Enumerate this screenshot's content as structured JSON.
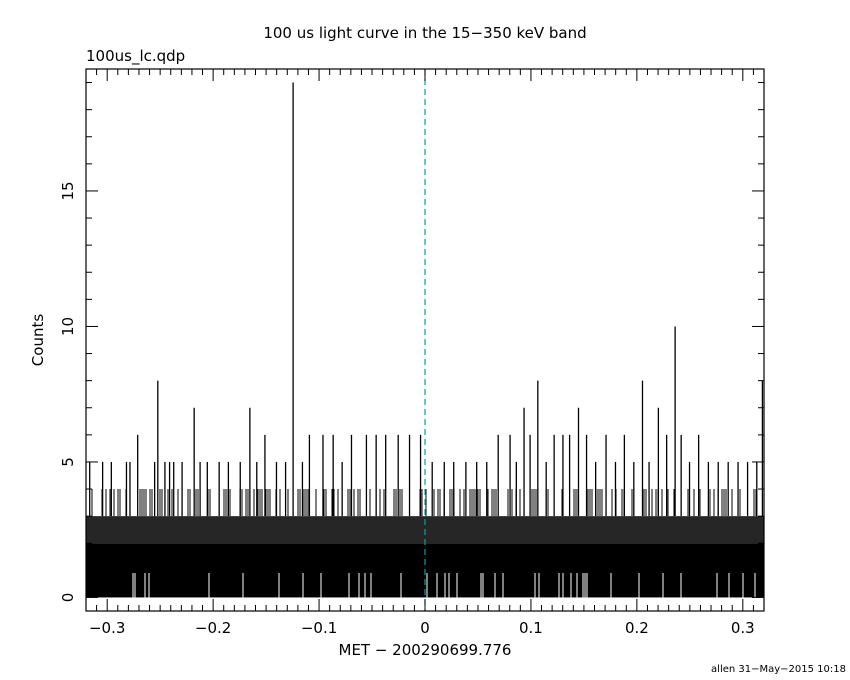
{
  "chart_data": {
    "type": "line",
    "title": "100 us light curve in the 15−350 keV band",
    "file_label": "100us_lc.qdp",
    "xlabel": "MET − 200290699.776",
    "ylabel": "Counts",
    "footer": "allen 31−May−2015 10:18",
    "xlim": [
      -0.32,
      0.32
    ],
    "ylim": [
      -0.5,
      19.5
    ],
    "x_ticks": [
      -0.3,
      -0.2,
      -0.1,
      0,
      0.1,
      0.2,
      0.3
    ],
    "x_tick_labels": [
      "−0.3",
      "−0.2",
      "−0.1",
      "0",
      "0.1",
      "0.2",
      "0.3"
    ],
    "y_ticks": [
      0,
      5,
      10,
      15
    ],
    "y_tick_labels": [
      "0",
      "5",
      "10",
      "15"
    ],
    "bin_width": 0.0001,
    "reference_line_x": 0,
    "grid": false,
    "colors": {
      "series": "#000000",
      "reference": "#00a0b0",
      "background": "#ffffff"
    },
    "series": [
      {
        "x": [
          -0.3165,
          -0.3043,
          -0.2961,
          -0.2818,
          -0.2785,
          -0.2712,
          -0.2552,
          -0.2522,
          -0.2455,
          -0.2411,
          -0.2372,
          -0.2293,
          -0.2179,
          -0.2123,
          -0.2055,
          -0.1943,
          -0.1856,
          -0.1744,
          -0.1653,
          -0.1588,
          -0.1511,
          -0.1402,
          -0.1316,
          -0.1245,
          -0.1157,
          -0.1091,
          -0.0963,
          -0.0867,
          -0.0782,
          -0.0694,
          -0.0553,
          -0.0461,
          -0.0371,
          -0.0253,
          -0.0146,
          -0.0042,
          0.0068,
          0.0182,
          0.0271,
          0.0386,
          0.0488,
          0.0583,
          0.0691,
          0.0803,
          0.0862,
          0.0935,
          0.0992,
          0.1065,
          0.1144,
          0.1219,
          0.1302,
          0.1365,
          0.1449,
          0.1525,
          0.1611,
          0.1709,
          0.1798,
          0.1882,
          0.1971,
          0.2053,
          0.2115,
          0.2203,
          0.2281,
          0.2361,
          0.2418,
          0.2497,
          0.2583,
          0.2675,
          0.2768,
          0.2862,
          0.2955,
          0.3045,
          0.3132,
          0.3185
        ],
        "y": [
          5,
          5,
          5,
          5,
          5,
          6,
          5,
          8,
          5,
          5,
          5,
          5,
          7,
          5,
          5,
          5,
          5,
          5,
          7,
          5,
          6,
          5,
          5,
          19,
          5,
          6,
          6,
          6,
          5,
          6,
          6,
          6,
          6,
          6,
          6,
          6,
          5,
          5,
          5,
          5,
          5,
          5,
          6,
          6,
          5,
          7,
          6,
          8,
          5,
          6,
          6,
          6,
          7,
          6,
          5,
          6,
          5,
          6,
          5,
          8,
          5,
          7,
          6,
          10,
          6,
          5,
          6,
          5,
          5,
          5,
          5,
          5,
          5,
          8
        ]
      }
    ]
  }
}
